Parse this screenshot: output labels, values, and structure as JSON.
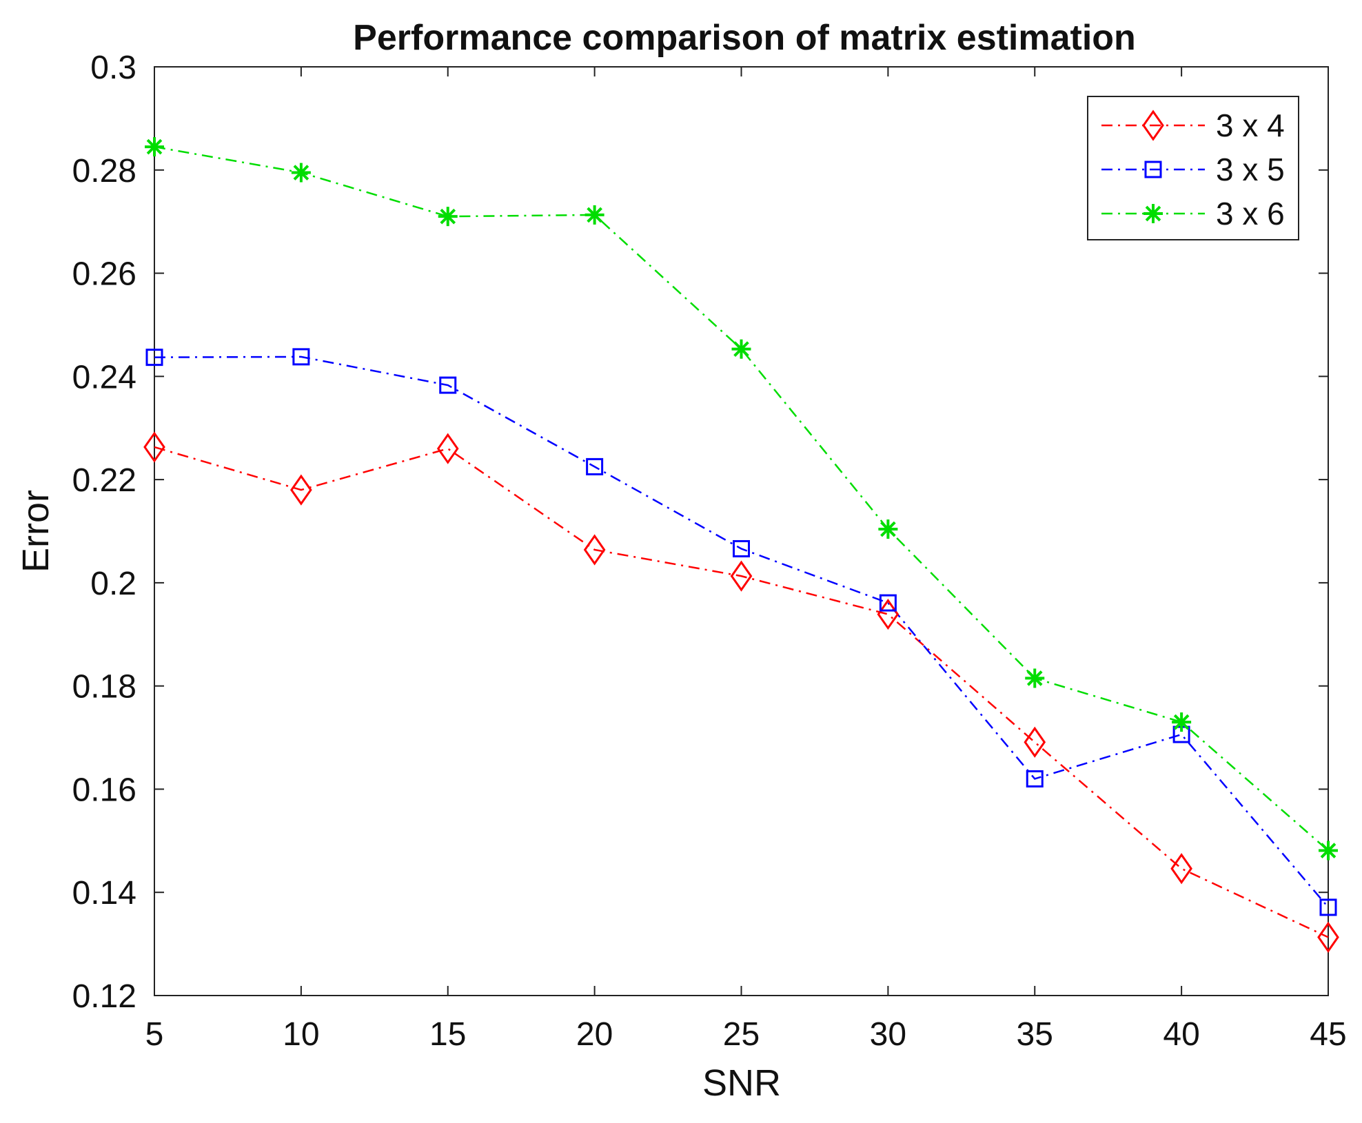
{
  "chart_data": {
    "type": "line",
    "title": "Performance comparison of matrix estimation",
    "xlabel": "SNR",
    "ylabel": "Error",
    "xlim": [
      5,
      45
    ],
    "ylim": [
      0.12,
      0.3
    ],
    "x": [
      5,
      10,
      15,
      20,
      25,
      30,
      35,
      40,
      45
    ],
    "xticks": [
      "5",
      "10",
      "15",
      "20",
      "25",
      "30",
      "35",
      "40",
      "45"
    ],
    "yticks": [
      0.12,
      0.14,
      0.16,
      0.18,
      0.2,
      0.22,
      0.24,
      0.26,
      0.28,
      0.3
    ],
    "ytick_labels": [
      "0.12",
      "0.14",
      "0.16",
      "0.18",
      "0.2",
      "0.22",
      "0.24",
      "0.26",
      "0.28",
      "0.3"
    ],
    "grid": false,
    "legend_position": "top-right",
    "series": [
      {
        "name": "3 x 4",
        "color": "#ff0000",
        "marker": "diamond",
        "line_style": "dash-dot",
        "values": [
          0.2263,
          0.218,
          0.226,
          0.2064,
          0.2013,
          0.1939,
          0.1691,
          0.1446,
          0.1313
        ]
      },
      {
        "name": "3 x 5",
        "color": "#0000ff",
        "marker": "square",
        "line_style": "dash-dot",
        "values": [
          0.2437,
          0.2438,
          0.2383,
          0.2225,
          0.2066,
          0.1961,
          0.162,
          0.1706,
          0.1371
        ]
      },
      {
        "name": "3 x 6",
        "color": "#00dd00",
        "marker": "star",
        "line_style": "dash-dot",
        "values": [
          0.2845,
          0.2795,
          0.271,
          0.2713,
          0.2453,
          0.2104,
          0.1815,
          0.173,
          0.1481
        ]
      }
    ]
  }
}
